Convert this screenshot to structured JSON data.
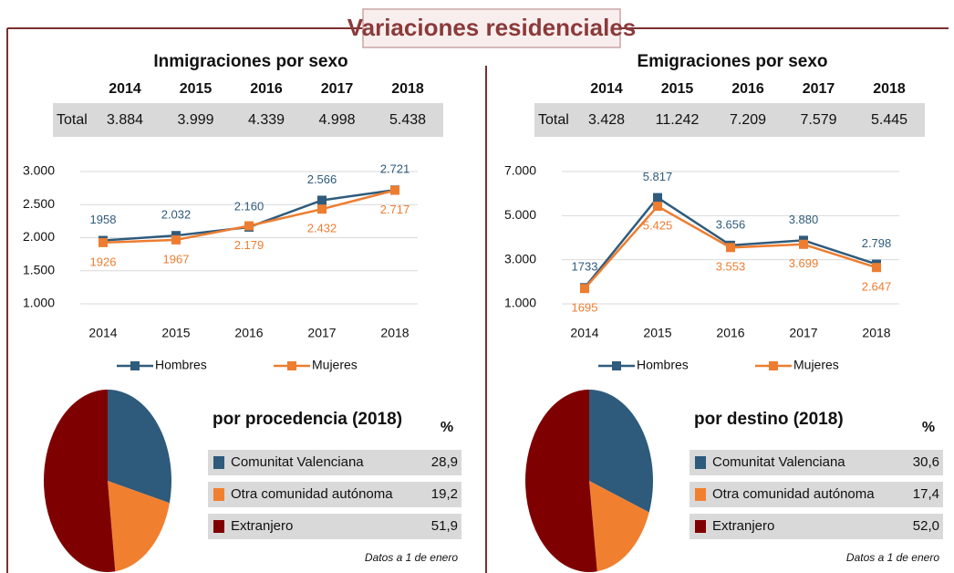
{
  "title": "Variaciones residenciales",
  "chart_data": [
    {
      "type": "line",
      "title": "Inmigraciones por sexo",
      "categories": [
        "2014",
        "2015",
        "2016",
        "2017",
        "2018"
      ],
      "series": [
        {
          "name": "Hombres",
          "color": "#2f5b7c",
          "values": [
            1958,
            2032,
            2160,
            2566,
            2721
          ],
          "value_labels": [
            "1958",
            "2.032",
            "2.160",
            "2.566",
            "2.721"
          ]
        },
        {
          "name": "Mujeres",
          "color": "#ed7d31",
          "values": [
            1926,
            1967,
            2179,
            2432,
            2717
          ],
          "value_labels": [
            "1926",
            "1967",
            "2.179",
            "2.432",
            "2.717"
          ]
        }
      ],
      "ylim": [
        1000,
        3000
      ],
      "yticks": [
        {
          "value": 1000,
          "label": "1.000"
        },
        {
          "value": 1500,
          "label": "1.500"
        },
        {
          "value": 2000,
          "label": "2.000"
        },
        {
          "value": 2500,
          "label": "2.500"
        },
        {
          "value": 3000,
          "label": "3.000"
        }
      ],
      "grid": true,
      "legend": "bottom"
    },
    {
      "type": "pie",
      "title": "por procedencia (2018)",
      "unit": "%",
      "categories": [
        "Comunitat Valenciana",
        "Otra comunidad autónoma",
        "Extranjero"
      ],
      "values": [
        28.9,
        19.2,
        51.9
      ],
      "value_labels": [
        "28,9",
        "19,2",
        "51,9"
      ],
      "colors": [
        "#2e5a7b",
        "#f08030",
        "#7f0000"
      ],
      "note": "Datos a 1 de enero"
    },
    {
      "type": "line",
      "title": "Emigraciones por sexo",
      "categories": [
        "2014",
        "2015",
        "2016",
        "2017",
        "2018"
      ],
      "series": [
        {
          "name": "Hombres",
          "color": "#2f5b7c",
          "values": [
            1733,
            5817,
            3656,
            3880,
            2798
          ],
          "value_labels": [
            "1733",
            "5.817",
            "3.656",
            "3.880",
            "2.798"
          ]
        },
        {
          "name": "Mujeres",
          "color": "#ed7d31",
          "values": [
            1695,
            5425,
            3553,
            3699,
            2647
          ],
          "value_labels": [
            "1695",
            "5.425",
            "3.553",
            "3.699",
            "2.647"
          ]
        }
      ],
      "ylim": [
        1000,
        7000
      ],
      "yticks": [
        {
          "value": 1000,
          "label": "1.000"
        },
        {
          "value": 3000,
          "label": "3.000"
        },
        {
          "value": 5000,
          "label": "5.000"
        },
        {
          "value": 7000,
          "label": "7.000"
        }
      ],
      "grid": true,
      "legend": "bottom"
    },
    {
      "type": "pie",
      "title": "por destino (2018)",
      "unit": "%",
      "categories": [
        "Comunitat Valenciana",
        "Otra comunidad autónoma",
        "Extranjero"
      ],
      "values": [
        30.6,
        17.4,
        52.0
      ],
      "value_labels": [
        "30,6",
        "17,4",
        "52,0"
      ],
      "colors": [
        "#2e5a7b",
        "#f08030",
        "#7f0000"
      ],
      "note": "Datos a 1 de enero"
    }
  ],
  "tables": [
    {
      "columns": [
        "2014",
        "2015",
        "2016",
        "2017",
        "2018"
      ],
      "row_label": "Total",
      "row": [
        "3.884",
        "3.999",
        "4.339",
        "4.998",
        "5.438"
      ]
    },
    {
      "columns": [
        "2014",
        "2015",
        "2016",
        "2017",
        "2018"
      ],
      "row_label": "Total",
      "row": [
        "3.428",
        "11.242",
        "7.209",
        "7.579",
        "5.445"
      ]
    }
  ]
}
